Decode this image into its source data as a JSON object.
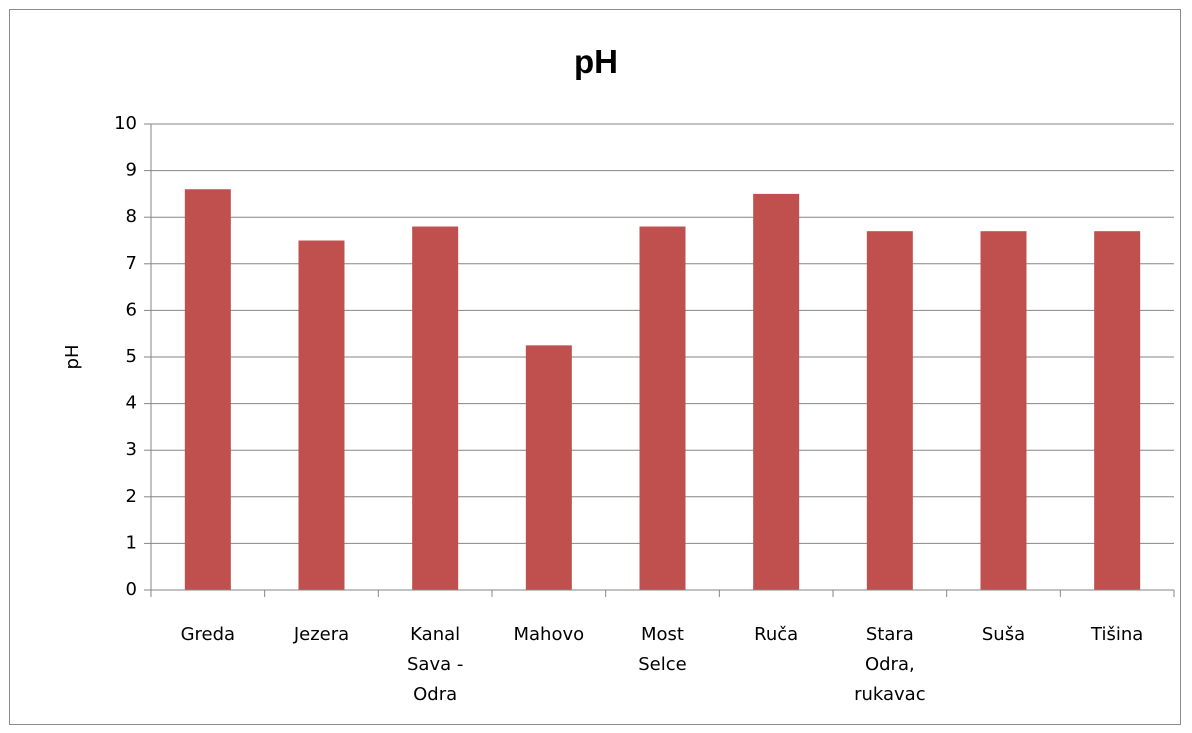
{
  "chart_data": {
    "type": "bar",
    "title": "pH",
    "ylabel": "pH",
    "xlabel": "",
    "ylim": [
      0,
      10
    ],
    "ytick_step": 1,
    "grid": true,
    "legend": "none",
    "categories": [
      [
        "Greda"
      ],
      [
        "Jezera"
      ],
      [
        "Kanal",
        "Sava -",
        "Odra"
      ],
      [
        "Mahovo"
      ],
      [
        "Most",
        "Selce"
      ],
      [
        "Ruča"
      ],
      [
        "Stara",
        "Odra,",
        "rukavac"
      ],
      [
        "Suša"
      ],
      [
        "Tišina"
      ]
    ],
    "values": [
      8.6,
      7.5,
      7.8,
      5.25,
      7.8,
      8.5,
      7.7,
      7.7,
      7.7
    ],
    "bar_color": "#c0504d"
  }
}
